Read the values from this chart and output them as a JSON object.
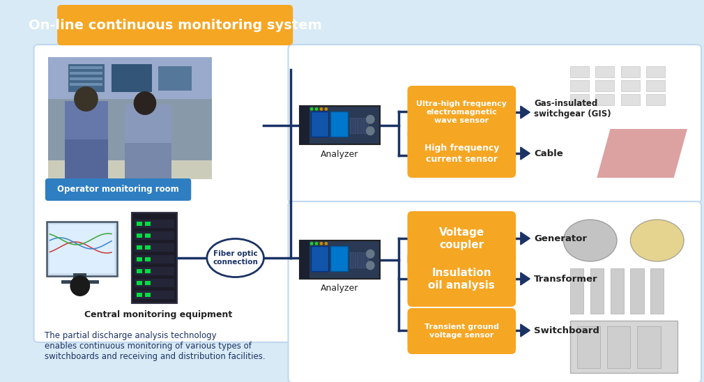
{
  "title": "On-line continuous monitoring system",
  "title_bg": "#F5A623",
  "title_color": "#FFFFFF",
  "bg_outer": "#D8EAF5",
  "panel_color": "#FFFFFF",
  "panel_edge": "#C0D8EE",
  "line_color": "#1A3265",
  "orange": "#F5A623",
  "blue_pill": "#2E7EC1",
  "dark": "#222222",
  "dark_blue_text": "#1A3265",
  "sensor_labels": [
    "Ultra-high frequency\nelectromagnetic\nwave sensor",
    "High frequency\ncurrent sensor",
    "Voltage\ncoupler",
    "Insulation\noil analysis",
    "Transient ground\nvoltage sensor"
  ],
  "equipment_labels": [
    "Gas-insulated\nswitchgear (GIS)",
    "Cable",
    "Generator",
    "Transformer",
    "Switchboard"
  ],
  "analyzer_label": "Analyzer",
  "fiber_optic_label": "Fiber optic\nconnection",
  "operator_label": "Operator monitoring room",
  "central_label": "Central monitoring equipment",
  "footer_text": "The partial discharge analysis technology\nenables continuous monitoring of various types of\nswitchboards and receiving and distribution facilities."
}
